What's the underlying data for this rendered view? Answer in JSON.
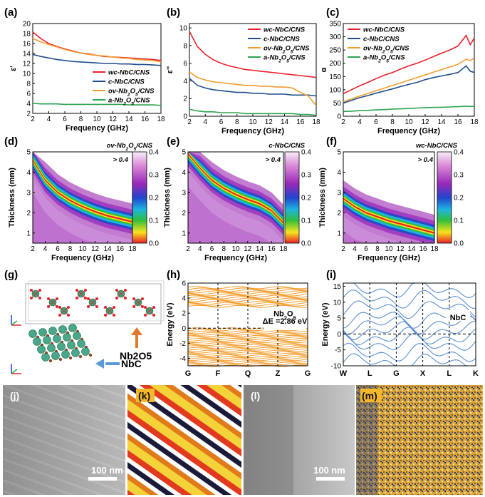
{
  "colors": {
    "wc": "#e8212a",
    "c": "#1f4e8c",
    "ov": "#f39c2b",
    "a": "#2ca44f",
    "band_nb2o5": "#f39c2b",
    "band_nbc": "#5b8fd6"
  },
  "panels": {
    "a": {
      "label": "(a)",
      "xlabel": "Frequency (GHz)",
      "ylabel": "ε'"
    },
    "b": {
      "label": "(b)",
      "xlabel": "Frequency (GHz)",
      "ylabel": "ε''"
    },
    "c": {
      "label": "(c)",
      "xlabel": "Frequency (GHz)",
      "ylabel": "α"
    },
    "d": {
      "label": "(d)",
      "xlabel": "Frequency (GHz)",
      "ylabel": "Thickness (mm)",
      "title": "ov-Nb2O5/CNS",
      "note": "> 0.4"
    },
    "e": {
      "label": "(e)",
      "xlabel": "Frequency (GHz)",
      "ylabel": "Thickness (mm)",
      "title": "c-NbC/CNS",
      "note": "> 0.4"
    },
    "f": {
      "label": "(f)",
      "xlabel": "Frequency (GHz)",
      "ylabel": "Thickness (mm)",
      "title": "wc-NbC/CNS",
      "note": "> 0.4"
    },
    "g": {
      "label": "(g)",
      "nb2o5": "Nb2O5",
      "nbc": "NbC"
    },
    "h": {
      "label": "(h)",
      "ylabel": "Energy (eV)",
      "material": "Nb2O5",
      "gap": "ΔE =2.86 eV",
      "kpoints": [
        "G",
        "F",
        "Q",
        "Z",
        "G"
      ]
    },
    "i": {
      "label": "(i)",
      "ylabel": "Energy (eV)",
      "material": "NbC",
      "kpoints": [
        "W",
        "L",
        "G",
        "X",
        "L",
        "K"
      ]
    },
    "j": {
      "label": "(j)",
      "scalebar": "100 nm"
    },
    "k": {
      "label": "(k)"
    },
    "l": {
      "label": "(l)",
      "scalebar": "100 nm"
    },
    "m": {
      "label": "(m)"
    }
  },
  "colorbar_ticks": [
    "0.4",
    "0.3",
    "0.2",
    "0.1",
    "0.0"
  ],
  "chart_data": [
    {
      "type": "line",
      "panel": "a",
      "x": [
        2,
        3,
        4,
        5,
        6,
        7,
        8,
        9,
        10,
        11,
        12,
        13,
        14,
        15,
        16,
        17,
        18
      ],
      "series": [
        {
          "name": "wc-NbC/CNS",
          "values": [
            18.3,
            17.0,
            16.0,
            15.4,
            14.9,
            14.5,
            14.1,
            13.9,
            13.6,
            13.4,
            13.3,
            13.2,
            13.1,
            13.0,
            12.9,
            12.8,
            12.6
          ]
        },
        {
          "name": "c-NbC/CNS",
          "values": [
            13.8,
            13.4,
            13.1,
            12.8,
            12.6,
            12.4,
            12.3,
            12.2,
            12.1,
            12.0,
            12.0,
            11.9,
            11.9,
            11.8,
            11.8,
            11.7,
            11.6
          ]
        },
        {
          "name": "ov-Nb2O5/CNS",
          "values": [
            17.0,
            16.3,
            15.8,
            15.3,
            14.8,
            14.4,
            14.1,
            13.8,
            13.6,
            13.5,
            13.3,
            13.1,
            13.0,
            12.8,
            12.7,
            12.6,
            12.3
          ]
        },
        {
          "name": "a-Nb2O5/CNS",
          "values": [
            4.0,
            3.9,
            3.9,
            3.9,
            3.8,
            3.8,
            3.8,
            3.8,
            3.8,
            3.8,
            3.8,
            3.8,
            3.7,
            3.7,
            3.7,
            3.7,
            3.6
          ]
        }
      ],
      "xticks": [
        2,
        4,
        6,
        8,
        10,
        12,
        14,
        16,
        18
      ],
      "yticks": [
        2,
        4,
        6,
        8,
        10,
        12,
        14,
        16,
        18,
        20
      ],
      "xlim": [
        2,
        18
      ],
      "ylim": [
        2,
        20
      ],
      "legend": "bottom-right"
    },
    {
      "type": "line",
      "panel": "b",
      "x": [
        2,
        3,
        4,
        5,
        6,
        7,
        8,
        9,
        10,
        11,
        12,
        13,
        14,
        15,
        16,
        17,
        18
      ],
      "series": [
        {
          "name": "wc-NbC/CNS",
          "values": [
            9.6,
            7.9,
            7.0,
            6.4,
            6.0,
            5.7,
            5.5,
            5.3,
            5.2,
            5.1,
            5.0,
            4.9,
            4.8,
            4.7,
            4.6,
            4.5,
            4.4
          ]
        },
        {
          "name": "c-NbC/CNS",
          "values": [
            4.3,
            3.5,
            3.2,
            3.0,
            2.9,
            2.8,
            2.7,
            2.7,
            2.6,
            2.6,
            2.5,
            2.5,
            2.5,
            2.4,
            2.4,
            2.4,
            2.3
          ]
        },
        {
          "name": "ov-Nb2O5/CNS",
          "values": [
            5.0,
            4.4,
            4.1,
            3.9,
            3.8,
            3.7,
            3.6,
            3.5,
            3.5,
            3.4,
            3.4,
            3.3,
            3.3,
            3.2,
            2.7,
            2.3,
            1.2
          ]
        },
        {
          "name": "a-Nb2O5/CNS",
          "values": [
            0.8,
            0.6,
            0.5,
            0.5,
            0.4,
            0.4,
            0.4,
            0.3,
            0.3,
            0.3,
            0.3,
            0.3,
            0.3,
            0.3,
            0.2,
            0.2,
            0.1
          ]
        }
      ],
      "xticks": [
        2,
        4,
        6,
        8,
        10,
        12,
        14,
        16,
        18
      ],
      "yticks": [
        0,
        2,
        4,
        6,
        8,
        10
      ],
      "xlim": [
        2,
        18
      ],
      "ylim": [
        0,
        10.5
      ],
      "legend": "top-right"
    },
    {
      "type": "line",
      "panel": "c",
      "x": [
        2,
        3,
        4,
        5,
        6,
        7,
        8,
        9,
        10,
        11,
        12,
        13,
        14,
        15,
        16,
        17,
        17.5,
        18
      ],
      "series": [
        {
          "name": "wc-NbC/CNS",
          "values": [
            85,
            100,
            115,
            128,
            142,
            155,
            165,
            178,
            190,
            200,
            212,
            225,
            238,
            250,
            265,
            305,
            270,
            295
          ]
        },
        {
          "name": "c-NbC/CNS",
          "values": [
            50,
            60,
            70,
            78,
            87,
            95,
            103,
            112,
            120,
            128,
            138,
            146,
            152,
            158,
            165,
            190,
            170,
            165
          ]
        },
        {
          "name": "ov-Nb2O5/CNS",
          "values": [
            55,
            65,
            76,
            86,
            96,
            106,
            116,
            126,
            136,
            146,
            156,
            166,
            176,
            186,
            196,
            215,
            210,
            220
          ]
        },
        {
          "name": "a-Nb2O5/CNS",
          "values": [
            18,
            19,
            21,
            22,
            24,
            25,
            27,
            28,
            29,
            31,
            32,
            33,
            34,
            35,
            36,
            38,
            37,
            38
          ]
        }
      ],
      "xticks": [
        2,
        4,
        6,
        8,
        10,
        12,
        14,
        16,
        18
      ],
      "yticks": [
        0,
        50,
        100,
        150,
        200,
        250,
        300,
        350
      ],
      "xlim": [
        2,
        18
      ],
      "ylim": [
        0,
        350
      ],
      "legend": "top-left"
    },
    {
      "type": "heatmap",
      "panel": "d",
      "x": [
        2,
        4,
        6,
        8,
        10,
        12,
        14,
        16,
        18
      ],
      "ridge_thickness_mm": [
        4.6,
        3.6,
        3.0,
        2.6,
        2.3,
        2.05,
        1.85,
        1.7,
        1.55
      ],
      "xticks": [
        2,
        4,
        6,
        8,
        10,
        12,
        14,
        16,
        18
      ],
      "yticks": [
        1,
        2,
        3,
        4,
        5
      ],
      "xlim": [
        2,
        18
      ],
      "ylim": [
        0.5,
        5
      ],
      "colorbar": [
        0,
        0.4
      ]
    },
    {
      "type": "heatmap",
      "panel": "e",
      "x": [
        2,
        4,
        6,
        8,
        10,
        12,
        14,
        16,
        18
      ],
      "ridge_thickness_mm": [
        4.9,
        4.2,
        3.6,
        3.2,
        2.9,
        2.65,
        2.45,
        2.1,
        1.5
      ],
      "xticks": [
        2,
        4,
        6,
        8,
        10,
        12,
        14,
        16,
        18
      ],
      "yticks": [
        1,
        2,
        3,
        4,
        5
      ],
      "xlim": [
        2,
        18
      ],
      "ylim": [
        0.5,
        5
      ],
      "colorbar": [
        0,
        0.4
      ]
    },
    {
      "type": "heatmap",
      "panel": "f",
      "x": [
        2,
        4,
        6,
        8,
        10,
        12,
        14,
        16,
        18
      ],
      "ridge_thickness_mm": [
        2.7,
        2.3,
        2.0,
        1.8,
        1.6,
        1.45,
        1.3,
        1.15,
        1.0
      ],
      "xticks": [
        2,
        4,
        6,
        8,
        10,
        12,
        14,
        16,
        18
      ],
      "yticks": [
        1,
        2,
        3,
        4,
        5
      ],
      "xlim": [
        2,
        18
      ],
      "ylim": [
        0.5,
        5
      ],
      "colorbar": [
        0,
        0.4
      ]
    },
    {
      "type": "line",
      "panel": "h",
      "yticks": [
        -4,
        -2,
        0,
        2,
        4,
        6
      ],
      "ylim": [
        -5,
        6
      ],
      "conduction_band_range_eV": [
        2.9,
        5.4
      ],
      "valence_band_range_eV": [
        -5,
        -0.05
      ]
    },
    {
      "type": "line",
      "panel": "i",
      "yticks": [
        -10,
        -5,
        0,
        5,
        10,
        15
      ],
      "ylim": [
        -10,
        16
      ]
    }
  ]
}
